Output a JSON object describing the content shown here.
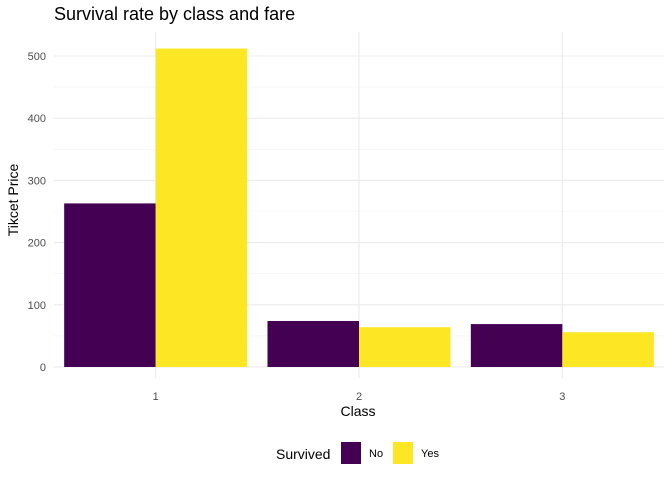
{
  "chart_data": {
    "type": "bar",
    "title": "Survival rate by class and fare",
    "xlabel": "Class",
    "ylabel": "Tikcet Price",
    "categories": [
      "1",
      "2",
      "3"
    ],
    "series": [
      {
        "name": "No",
        "values": [
          263,
          74,
          69
        ],
        "color": "#440154"
      },
      {
        "name": "Yes",
        "values": [
          512,
          64,
          56
        ],
        "color": "#FDE725"
      }
    ],
    "ylim": [
      0,
      530
    ],
    "yticks": [
      0,
      100,
      200,
      300,
      400,
      500
    ],
    "grid": true,
    "legend": {
      "title": "Survived",
      "position": "bottom"
    }
  }
}
